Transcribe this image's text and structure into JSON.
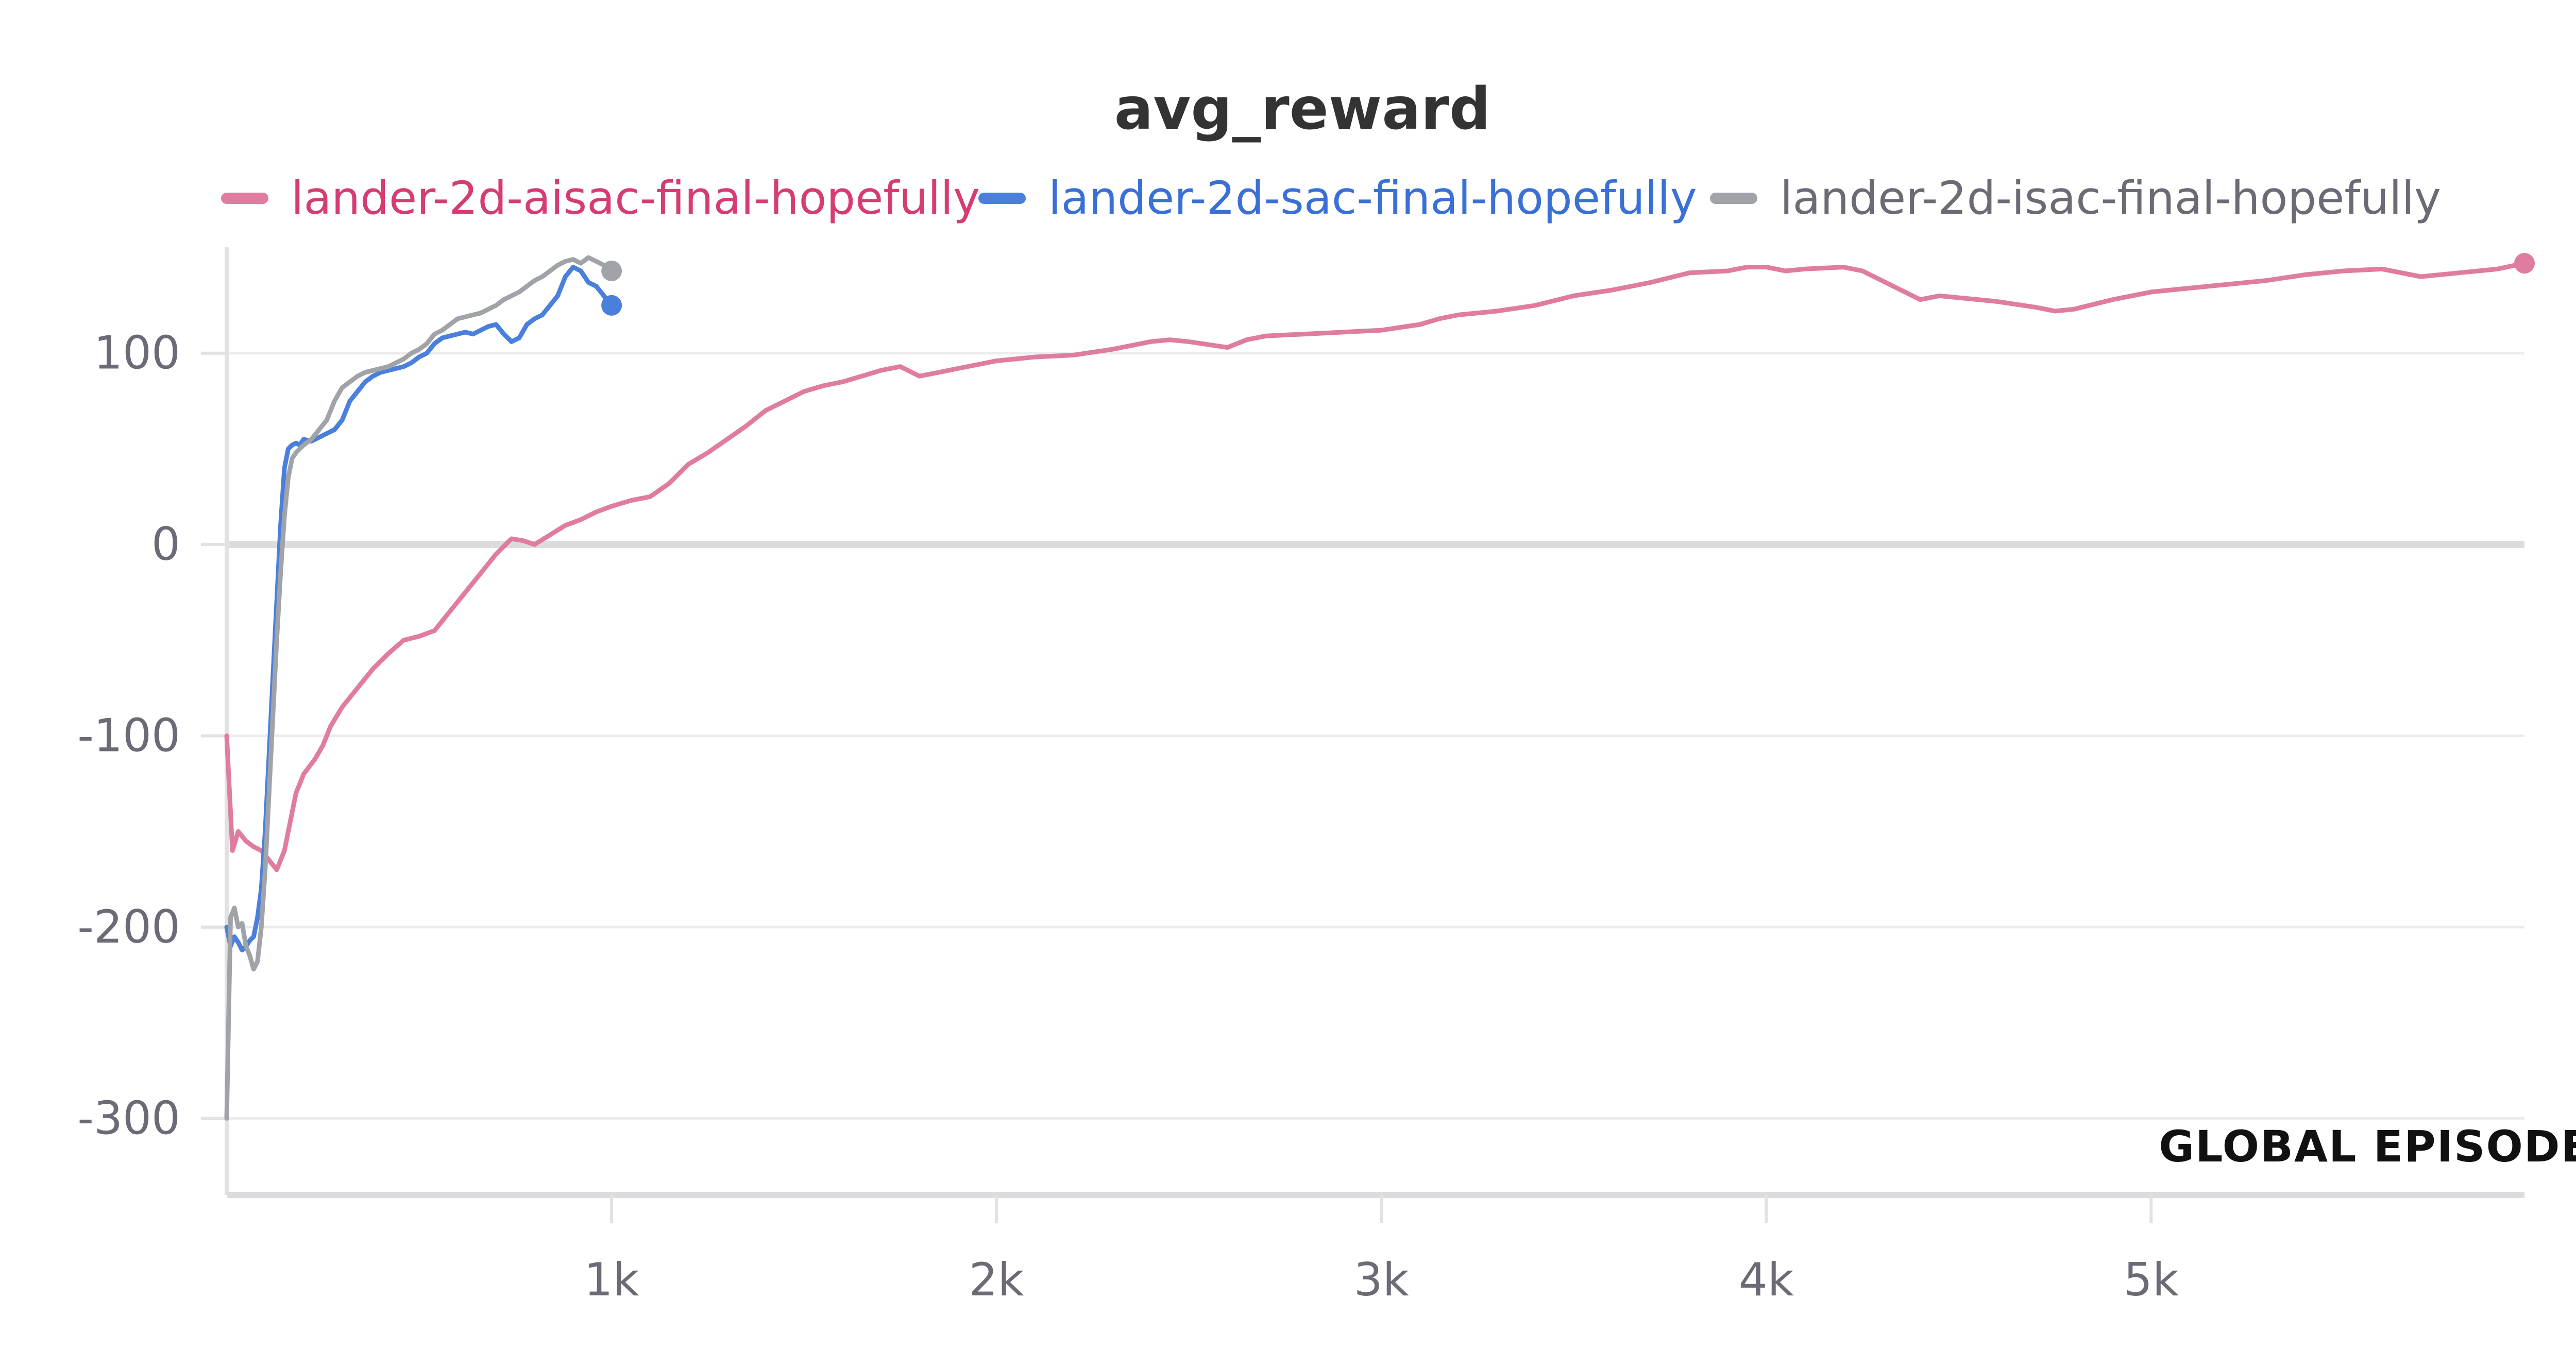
{
  "chart_data": {
    "type": "line",
    "title": "avg_reward",
    "xlabel": "GLOBAL EPISODE",
    "ylabel": "",
    "xlim": [
      0,
      5970
    ],
    "ylim": [
      -340,
      150
    ],
    "x_ticks": [
      {
        "value": 1000,
        "label": "1k"
      },
      {
        "value": 2000,
        "label": "2k"
      },
      {
        "value": 3000,
        "label": "3k"
      },
      {
        "value": 4000,
        "label": "4k"
      },
      {
        "value": 5000,
        "label": "5k"
      }
    ],
    "y_ticks": [
      {
        "value": 100,
        "label": "100"
      },
      {
        "value": 0,
        "label": "0"
      },
      {
        "value": -100,
        "label": "-100"
      },
      {
        "value": -200,
        "label": "-200"
      },
      {
        "value": -300,
        "label": "-300"
      }
    ],
    "grid": true,
    "legend_position": "top",
    "series": [
      {
        "name": "lander-2d-aisac-final-hopefully",
        "color": "#e07ca0",
        "label_color": "#d63c74",
        "x": [
          0,
          15,
          30,
          50,
          70,
          90,
          110,
          130,
          150,
          170,
          180,
          200,
          230,
          250,
          270,
          300,
          340,
          380,
          420,
          460,
          500,
          540,
          580,
          620,
          660,
          700,
          740,
          770,
          800,
          840,
          880,
          920,
          960,
          1000,
          1050,
          1100,
          1150,
          1200,
          1250,
          1300,
          1350,
          1400,
          1450,
          1500,
          1550,
          1600,
          1650,
          1700,
          1750,
          1780,
          1800,
          1850,
          1900,
          1950,
          2000,
          2050,
          2100,
          2200,
          2300,
          2400,
          2450,
          2500,
          2600,
          2650,
          2700,
          2800,
          2900,
          3000,
          3100,
          3150,
          3200,
          3300,
          3400,
          3500,
          3600,
          3700,
          3800,
          3900,
          3950,
          4000,
          4050,
          4100,
          4200,
          4250,
          4300,
          4400,
          4450,
          4500,
          4600,
          4700,
          4750,
          4800,
          4900,
          5000,
          5100,
          5200,
          5300,
          5400,
          5500,
          5600,
          5700,
          5800,
          5900,
          5970
        ],
        "values": [
          -100,
          -160,
          -150,
          -155,
          -158,
          -160,
          -165,
          -170,
          -160,
          -140,
          -130,
          -120,
          -112,
          -105,
          -95,
          -85,
          -75,
          -65,
          -57,
          -50,
          -48,
          -45,
          -35,
          -25,
          -15,
          -5,
          3,
          2,
          0,
          5,
          10,
          13,
          17,
          20,
          23,
          25,
          32,
          42,
          48,
          55,
          62,
          70,
          75,
          80,
          83,
          85,
          88,
          91,
          93,
          90,
          88,
          90,
          92,
          94,
          96,
          97,
          98,
          99,
          102,
          106,
          107,
          106,
          103,
          107,
          109,
          110,
          111,
          112,
          115,
          118,
          120,
          122,
          125,
          130,
          133,
          137,
          142,
          143,
          145,
          145,
          143,
          144,
          145,
          143,
          138,
          128,
          130,
          129,
          127,
          124,
          122,
          123,
          128,
          132,
          134,
          136,
          138,
          141,
          143,
          144,
          140,
          142,
          144,
          147
        ]
      },
      {
        "name": "lander-2d-sac-final-hopefully",
        "color": "#4a7fdc",
        "label_color": "#3a70d6",
        "x": [
          0,
          10,
          20,
          30,
          40,
          50,
          60,
          70,
          80,
          90,
          100,
          110,
          120,
          130,
          140,
          150,
          160,
          170,
          180,
          190,
          200,
          220,
          240,
          260,
          280,
          300,
          320,
          340,
          360,
          380,
          400,
          420,
          440,
          460,
          480,
          500,
          520,
          540,
          560,
          580,
          600,
          620,
          640,
          660,
          680,
          700,
          720,
          740,
          760,
          780,
          800,
          820,
          840,
          860,
          880,
          900,
          920,
          940,
          960,
          980,
          1000
        ],
        "values": [
          -200,
          -210,
          -205,
          -208,
          -212,
          -210,
          -207,
          -205,
          -195,
          -180,
          -150,
          -110,
          -70,
          -30,
          10,
          40,
          50,
          52,
          53,
          52,
          55,
          54,
          56,
          58,
          60,
          65,
          75,
          80,
          85,
          88,
          90,
          91,
          92,
          93,
          95,
          98,
          100,
          105,
          108,
          109,
          110,
          111,
          110,
          112,
          114,
          115,
          110,
          106,
          108,
          115,
          118,
          120,
          125,
          130,
          140,
          145,
          143,
          137,
          135,
          130,
          125
        ]
      },
      {
        "name": "lander-2d-isac-final-hopefully",
        "color": "#a0a4a8",
        "label_color": "#6b6b76",
        "x": [
          0,
          10,
          20,
          30,
          40,
          50,
          60,
          70,
          80,
          90,
          100,
          110,
          120,
          130,
          140,
          150,
          160,
          170,
          180,
          190,
          200,
          220,
          240,
          260,
          280,
          300,
          320,
          340,
          360,
          380,
          400,
          420,
          440,
          460,
          480,
          500,
          520,
          540,
          560,
          580,
          600,
          620,
          640,
          660,
          680,
          700,
          720,
          740,
          760,
          780,
          800,
          820,
          840,
          860,
          880,
          900,
          920,
          940,
          960,
          980,
          1000
        ],
        "values": [
          -300,
          -195,
          -190,
          -200,
          -198,
          -210,
          -215,
          -222,
          -218,
          -200,
          -170,
          -130,
          -90,
          -50,
          -15,
          15,
          35,
          45,
          48,
          50,
          52,
          55,
          60,
          65,
          75,
          82,
          85,
          88,
          90,
          91,
          92,
          93,
          95,
          97,
          100,
          102,
          105,
          110,
          112,
          115,
          118,
          119,
          120,
          121,
          123,
          125,
          128,
          130,
          132,
          135,
          138,
          140,
          143,
          146,
          148,
          149,
          147,
          150,
          148,
          146,
          143
        ]
      }
    ]
  }
}
